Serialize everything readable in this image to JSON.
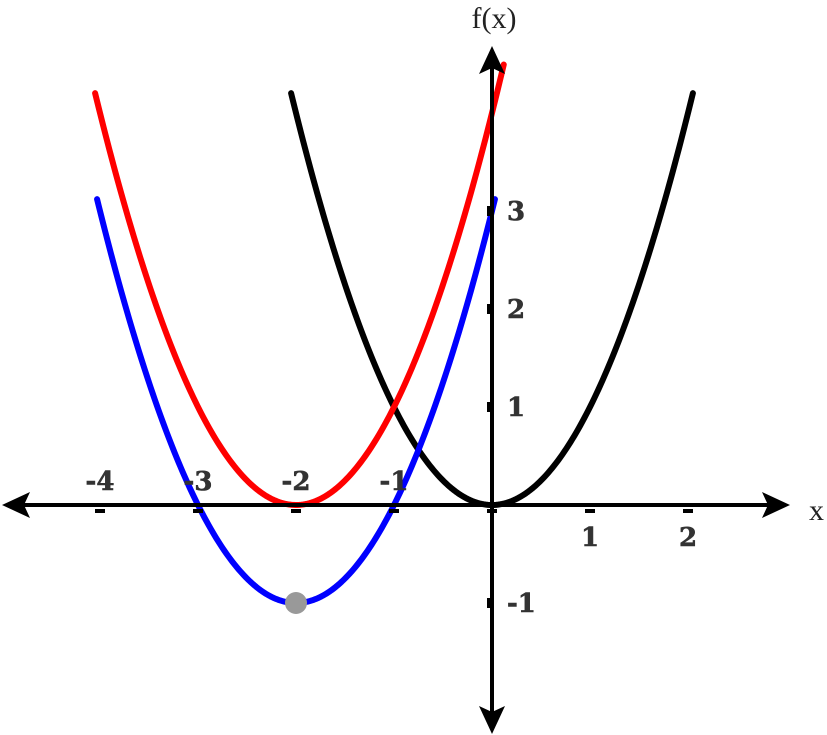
{
  "chart_data": {
    "type": "line",
    "title": "",
    "xlabel": "x",
    "ylabel": "f(x)",
    "xlim": [
      -5,
      3
    ],
    "ylim": [
      -2.1,
      4.3
    ],
    "grid": false,
    "legend": "none",
    "x_ticks": [
      {
        "value": -4,
        "label": "-4"
      },
      {
        "value": -3,
        "label": "-3"
      },
      {
        "value": -2,
        "label": "-2"
      },
      {
        "value": -1,
        "label": "-1"
      },
      {
        "value": 1,
        "label": "1"
      },
      {
        "value": 2,
        "label": "2"
      }
    ],
    "y_ticks": [
      {
        "value": 3,
        "label": "3"
      },
      {
        "value": 2,
        "label": "2"
      },
      {
        "value": 1,
        "label": "1"
      },
      {
        "value": -1,
        "label": "-1"
      }
    ],
    "series": [
      {
        "color": "#000000",
        "formula": "y = x^2",
        "domain": [
          -2.05,
          2.05
        ]
      },
      {
        "color": "#ff0000",
        "formula": "y = (x+2)^2",
        "domain": [
          -4.05,
          0.12
        ]
      },
      {
        "color": "#0000ff",
        "formula": "y = (x+2)^2 - 1",
        "domain": [
          -4.03,
          0.03
        ]
      }
    ],
    "points": [
      {
        "x": -2,
        "y": -1,
        "color": "#999999"
      }
    ]
  }
}
